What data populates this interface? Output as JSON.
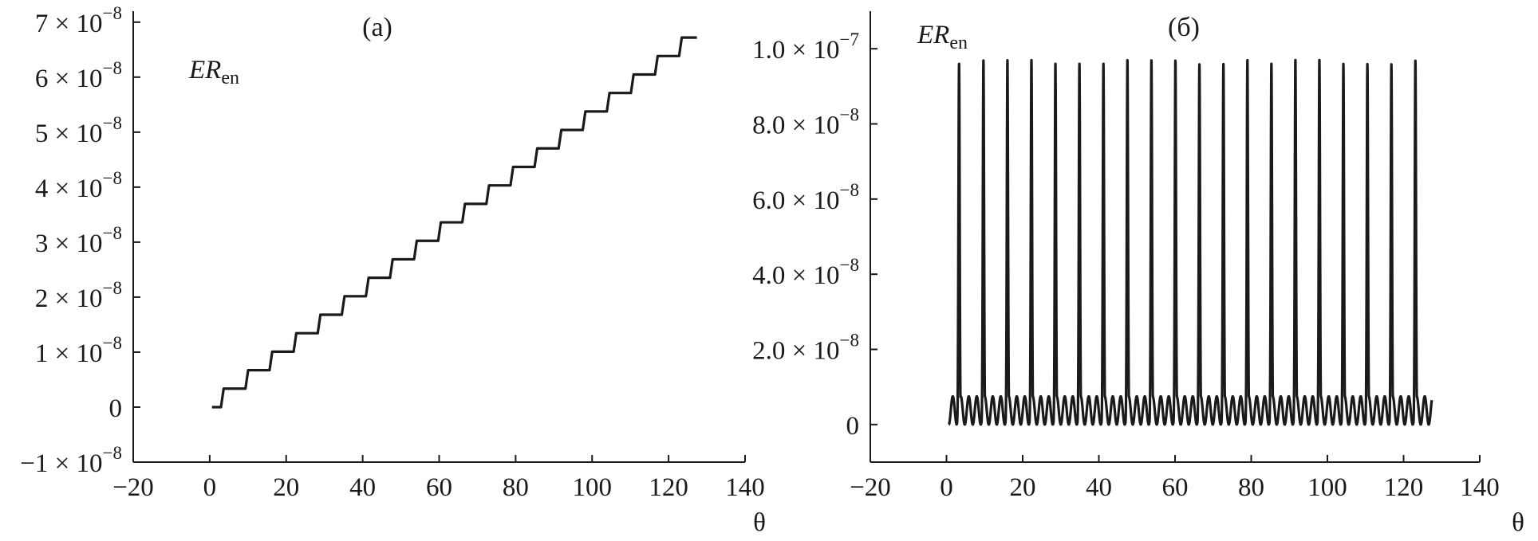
{
  "chart_data": [
    {
      "type": "line",
      "panel_label": "(a)",
      "ylabel": "ER",
      "ylabel_sub": "en",
      "xlabel": "θ",
      "xlim": [
        -20,
        140
      ],
      "ylim": [
        -1e-08,
        7.2e-08
      ],
      "x_ticks": [
        -20,
        0,
        20,
        40,
        60,
        80,
        100,
        120,
        140
      ],
      "x_tick_labels": [
        "−20",
        "0",
        "20",
        "40",
        "60",
        "80",
        "100",
        "120",
        "140"
      ],
      "y_ticks": [
        -1e-08,
        0,
        1e-08,
        2e-08,
        3e-08,
        4e-08,
        5e-08,
        6e-08,
        7e-08
      ],
      "y_tick_labels": [
        {
          "mantissa": "−1 × 10",
          "exp": "−8"
        },
        {
          "mantissa": "0",
          "exp": ""
        },
        {
          "mantissa": "1 × 10",
          "exp": "−8"
        },
        {
          "mantissa": "2 × 10",
          "exp": "−8"
        },
        {
          "mantissa": "3 × 10",
          "exp": "−8"
        },
        {
          "mantissa": "4 × 10",
          "exp": "−8"
        },
        {
          "mantissa": "5 × 10",
          "exp": "−8"
        },
        {
          "mantissa": "6 × 10",
          "exp": "−8"
        },
        {
          "mantissa": "7 × 10",
          "exp": "−8"
        }
      ],
      "series": [
        {
          "kind": "staircase",
          "x_start": 0.6,
          "x_end": 127.4,
          "step_x": [
            3.3,
            9.7,
            16.0,
            22.3,
            28.6,
            34.9,
            41.2,
            47.5,
            53.8,
            60.1,
            66.4,
            72.7,
            79.0,
            85.3,
            91.6,
            97.9,
            104.2,
            110.5,
            116.8,
            123.1
          ],
          "levels": [
            0,
            3.36e-09,
            6.72e-09,
            1.008e-08,
            1.344e-08,
            1.68e-08,
            2.016e-08,
            2.352e-08,
            2.688e-08,
            3.024e-08,
            3.36e-08,
            3.696e-08,
            4.032e-08,
            4.368e-08,
            4.704e-08,
            5.04e-08,
            5.376e-08,
            5.712e-08,
            6.048e-08,
            6.384e-08,
            6.72e-08
          ]
        }
      ]
    },
    {
      "type": "line",
      "panel_label": "(б)",
      "ylabel": "ER",
      "ylabel_sub": "en",
      "xlabel": "θ",
      "xlim": [
        -20,
        140
      ],
      "ylim": [
        -1e-08,
        1.1e-07
      ],
      "x_ticks": [
        -20,
        0,
        20,
        40,
        60,
        80,
        100,
        120,
        140
      ],
      "x_tick_labels": [
        "−20",
        "0",
        "20",
        "40",
        "60",
        "80",
        "100",
        "120",
        "140"
      ],
      "y_ticks": [
        0,
        2e-08,
        4e-08,
        6e-08,
        8e-08,
        1e-07
      ],
      "y_tick_labels": [
        {
          "mantissa": "0",
          "exp": ""
        },
        {
          "mantissa": "2.0 × 10",
          "exp": "−8"
        },
        {
          "mantissa": "4.0 × 10",
          "exp": "−8"
        },
        {
          "mantissa": "6.0 × 10",
          "exp": "−8"
        },
        {
          "mantissa": "8.0 × 10",
          "exp": "−8"
        },
        {
          "mantissa": "1.0 × 10",
          "exp": "−7"
        }
      ],
      "series": [
        {
          "kind": "oscillation",
          "x_start": 0.6,
          "x_end": 127.4,
          "spike_x": [
            3.3,
            9.7,
            16.0,
            22.3,
            28.6,
            34.9,
            41.2,
            47.5,
            53.8,
            60.1,
            66.4,
            72.7,
            79.0,
            85.3,
            91.6,
            97.9,
            104.2,
            110.5,
            116.8,
            123.1
          ],
          "spike_peak": [
            9.6e-08,
            9.7e-08,
            9.7e-08,
            9.7e-08,
            9.6e-08,
            9.6e-08,
            9.6e-08,
            9.7e-08,
            9.7e-08,
            9.7e-08,
            9.6e-08,
            9.6e-08,
            9.7e-08,
            9.6e-08,
            9.7e-08,
            9.7e-08,
            9.6e-08,
            9.6e-08,
            9.6e-08,
            9.7e-08
          ],
          "baseline_max": 7.5e-09,
          "baseline_min": 0
        }
      ]
    }
  ]
}
